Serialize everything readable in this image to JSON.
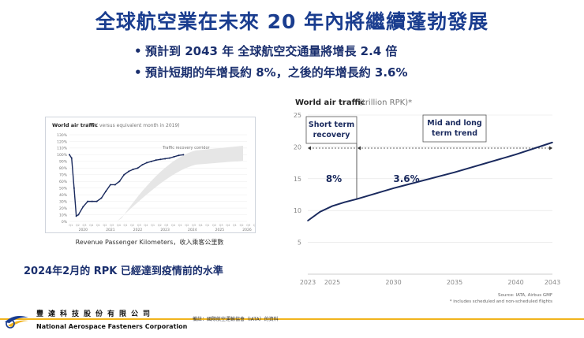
{
  "slide": {
    "title": "全球航空業在未來 20 年內將繼續蓬勃發展",
    "bullets": [
      "預計到  2043 年 全球航空交通量將增長 2.4 倍",
      "預計短期的年增長約 8%，之後的年增長約 3.6%"
    ],
    "thumbnail_caption": "Revenue Passenger Kilometers，收入乘客公里數",
    "rpk_note": "2024年2月的 RPK 已經達到疫情前的水準",
    "footer": {
      "company_zh": "豐達科技股份有限公司",
      "company_en": "National Aerospace Fasteners Corporation",
      "source_note": "備註：國際航空運輸協會（IATA）的資料"
    }
  },
  "chart_data": [
    {
      "type": "line",
      "title": "World air traffic",
      "title_suffix": "(RPK versus equivalent month in 2019)",
      "annotation": "Traffic recovery corridor",
      "y_tick_labels": [
        "0%",
        "10%",
        "20%",
        "30%",
        "40%",
        "50%",
        "60%",
        "70%",
        "80%",
        "90%",
        "100%",
        "110%",
        "120%",
        "130%"
      ],
      "ylim": [
        0,
        130
      ],
      "x_year_labels": [
        "2020",
        "2021",
        "2022",
        "2023",
        "2024",
        "2025",
        "2026"
      ],
      "series": [
        {
          "name": "RPK vs 2019",
          "x": [
            2020.0,
            2020.08,
            2020.17,
            2020.25,
            2020.33,
            2020.5,
            2020.67,
            2020.83,
            2021.0,
            2021.17,
            2021.33,
            2021.5,
            2021.67,
            2021.83,
            2022.0,
            2022.17,
            2022.33,
            2022.5,
            2022.67,
            2022.83,
            2023.0,
            2023.17,
            2023.33,
            2023.5,
            2023.67,
            2023.83,
            2024.0,
            2024.17
          ],
          "values": [
            100,
            95,
            50,
            8,
            10,
            22,
            30,
            30,
            30,
            35,
            45,
            55,
            55,
            60,
            70,
            75,
            78,
            80,
            85,
            88,
            90,
            92,
            93,
            94,
            95,
            97,
            99,
            100
          ]
        }
      ]
    },
    {
      "type": "line",
      "title": "World air traffic",
      "title_suffix": "(trillion RPK)*",
      "xlim": [
        2023,
        2043
      ],
      "ylim": [
        0,
        25
      ],
      "x_ticks": [
        2023,
        2025,
        2030,
        2035,
        2040,
        2043
      ],
      "y_ticks": [
        5,
        10,
        15,
        20,
        25
      ],
      "phases": [
        {
          "label_line1": "Short term",
          "label_line2": "recovery",
          "growth": "8%"
        },
        {
          "label_line1": "Mid and long",
          "label_line2": "term trend",
          "growth": "3.6%"
        }
      ],
      "phase_boundary_x": 2027,
      "series": [
        {
          "name": "World RPK",
          "x": [
            2023,
            2024,
            2025,
            2026,
            2027,
            2030,
            2035,
            2040,
            2043
          ],
          "values": [
            8.4,
            9.8,
            10.7,
            11.3,
            11.8,
            13.5,
            16.0,
            18.8,
            20.7
          ]
        }
      ],
      "source": "Source: IATA, Airbus GMF",
      "footnote": "* includes scheduled and non-scheduled flights"
    }
  ]
}
